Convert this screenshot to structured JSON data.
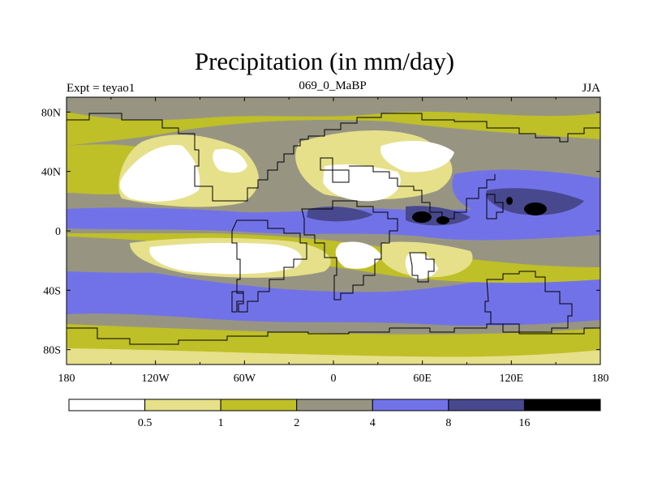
{
  "header": {
    "title": "Precipitation (in mm/day)",
    "experiment": "Expt = teyao1",
    "subtitle": "069_0_MaBP",
    "season": "JJA"
  },
  "map": {
    "projection": "cylindrical-equidistant",
    "lon_range": [
      -180,
      180
    ],
    "lat_range": [
      -90,
      90
    ],
    "x_ticks": [
      {
        "value": -180,
        "label": "180"
      },
      {
        "value": -120,
        "label": "120W"
      },
      {
        "value": -60,
        "label": "60W"
      },
      {
        "value": 0,
        "label": "0"
      },
      {
        "value": 60,
        "label": "60E"
      },
      {
        "value": 120,
        "label": "120E"
      },
      {
        "value": 180,
        "label": "180"
      }
    ],
    "y_ticks": [
      {
        "value": 80,
        "label": "80N"
      },
      {
        "value": 40,
        "label": "40N"
      },
      {
        "value": 0,
        "label": "0"
      },
      {
        "value": -40,
        "label": "40S"
      },
      {
        "value": -80,
        "label": "80S"
      }
    ]
  },
  "legend": {
    "colors": [
      "#ffffff",
      "#e6e08a",
      "#bfbf28",
      "#979582",
      "#7272e8",
      "#48488e",
      "#000000"
    ],
    "labels": [
      "0.5",
      "1",
      "2",
      "4",
      "8",
      "16"
    ]
  }
}
